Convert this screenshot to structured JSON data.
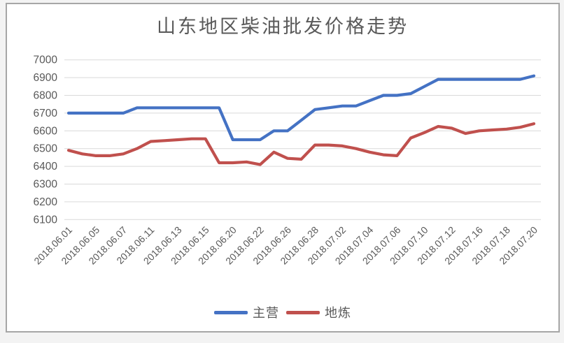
{
  "window": {
    "background": "#f3f3f3",
    "card_background": "#ffffff",
    "card_border_color": "#a6a6a6"
  },
  "chart_data": {
    "type": "line",
    "title": "山东地区柴油批发价格走势",
    "xlabel": "",
    "ylabel": "",
    "ylim": [
      6100,
      7000
    ],
    "ytick_step": 100,
    "grid": true,
    "gridline_color": "#d9d9d9",
    "axis_text_color": "#595959",
    "legend_position": "bottom",
    "tick_every": 2,
    "x_tick_labels": [
      "2018.06.01",
      "2018.06.05",
      "2018.06.07",
      "2018.06.11",
      "2018.06.13",
      "2018.06.15",
      "2018.06.20",
      "2018.06.22",
      "2018.06.26",
      "2018.06.28",
      "2018.07.02",
      "2018.07.04",
      "2018.07.06",
      "2018.07.10",
      "2018.07.12",
      "2018.07.16",
      "2018.07.18",
      "2018.07.20"
    ],
    "series": [
      {
        "name": "主营",
        "color": "#4472c4",
        "values": [
          6700,
          6700,
          6700,
          6700,
          6700,
          6730,
          6730,
          6730,
          6730,
          6730,
          6730,
          6730,
          6550,
          6550,
          6550,
          6600,
          6600,
          6660,
          6720,
          6730,
          6740,
          6740,
          6770,
          6800,
          6800,
          6810,
          6850,
          6890,
          6890,
          6890,
          6890,
          6890,
          6890,
          6890,
          6910
        ]
      },
      {
        "name": "地炼",
        "color": "#c0504d",
        "values": [
          6490,
          6470,
          6460,
          6460,
          6470,
          6500,
          6540,
          6545,
          6550,
          6555,
          6555,
          6420,
          6420,
          6425,
          6410,
          6480,
          6445,
          6440,
          6520,
          6520,
          6515,
          6500,
          6480,
          6465,
          6460,
          6560,
          6590,
          6625,
          6615,
          6585,
          6600,
          6605,
          6610,
          6620,
          6640
        ]
      }
    ]
  }
}
